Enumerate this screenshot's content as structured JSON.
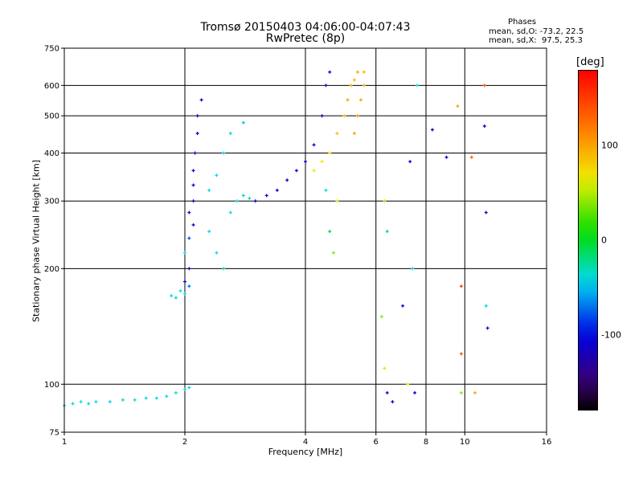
{
  "chart_data": {
    "type": "scatter",
    "title": "Tromsø 20150403 04:06:00-04:07:43",
    "subtitle": "RwPretec (8p)",
    "xlabel": "Frequency [MHz]",
    "ylabel": "Stationary phase Virtual Height [km]",
    "x_scale": "log",
    "y_scale": "log",
    "xlim": [
      1,
      16
    ],
    "ylim": [
      75,
      750
    ],
    "x_ticks": [
      1,
      2,
      4,
      6,
      8,
      10,
      16
    ],
    "y_ticks": [
      75,
      100,
      200,
      300,
      400,
      500,
      600,
      750
    ],
    "grid": true,
    "stats": {
      "heading": "Phases",
      "line_o": "mean, sd,O: -73.2, 22.5",
      "line_x": "mean, sd,X:  97.5, 25.3"
    },
    "colorbar": {
      "label": "[deg]",
      "range": [
        -180,
        180
      ],
      "ticks": [
        100,
        0,
        -100
      ]
    },
    "series": [
      {
        "points": [
          [
            1.0,
            88,
            -40
          ],
          [
            1.05,
            89,
            -35
          ],
          [
            1.1,
            90,
            -42
          ],
          [
            1.15,
            89,
            -38
          ],
          [
            1.2,
            90,
            -40
          ],
          [
            1.3,
            90,
            -45
          ],
          [
            1.4,
            91,
            -38
          ],
          [
            1.5,
            91,
            -40
          ],
          [
            1.6,
            92,
            -42
          ],
          [
            1.7,
            92,
            -36
          ],
          [
            1.8,
            93,
            -40
          ],
          [
            1.9,
            95,
            -38
          ],
          [
            2.0,
            97,
            -35
          ],
          [
            2.05,
            98,
            -40
          ],
          [
            1.85,
            170,
            -35
          ],
          [
            1.9,
            168,
            -30
          ],
          [
            1.95,
            175,
            -40
          ],
          [
            2.0,
            172,
            -45
          ],
          [
            2.05,
            180,
            -70
          ],
          [
            2.0,
            185,
            -110
          ],
          [
            2.05,
            200,
            -120
          ],
          [
            2.0,
            220,
            -40
          ],
          [
            2.05,
            240,
            -80
          ],
          [
            2.1,
            260,
            -120
          ],
          [
            2.05,
            280,
            -100
          ],
          [
            2.1,
            300,
            -120
          ],
          [
            2.1,
            330,
            -110
          ],
          [
            2.1,
            360,
            -120
          ],
          [
            2.12,
            400,
            -115
          ],
          [
            2.15,
            450,
            -110
          ],
          [
            2.15,
            500,
            -120
          ],
          [
            2.2,
            550,
            -115
          ],
          [
            2.3,
            320,
            -40
          ],
          [
            2.4,
            350,
            -40
          ],
          [
            2.5,
            400,
            -45
          ],
          [
            2.6,
            450,
            -40
          ],
          [
            2.8,
            480,
            -50
          ],
          [
            2.3,
            250,
            -40
          ],
          [
            2.4,
            220,
            -40
          ],
          [
            2.5,
            200,
            -35
          ],
          [
            2.6,
            280,
            -40
          ],
          [
            2.7,
            300,
            -35
          ],
          [
            2.8,
            310,
            -30
          ],
          [
            2.9,
            305,
            -40
          ],
          [
            3.0,
            300,
            -100
          ],
          [
            3.2,
            310,
            -110
          ],
          [
            3.4,
            320,
            -115
          ],
          [
            3.6,
            340,
            -110
          ],
          [
            3.8,
            360,
            -100
          ],
          [
            4.0,
            380,
            -120
          ],
          [
            4.2,
            420,
            -115
          ],
          [
            4.4,
            500,
            -110
          ],
          [
            4.5,
            600,
            -120
          ],
          [
            4.6,
            650,
            -100
          ],
          [
            4.2,
            360,
            60
          ],
          [
            4.4,
            380,
            70
          ],
          [
            4.6,
            400,
            80
          ],
          [
            4.8,
            450,
            90
          ],
          [
            5.0,
            500,
            85
          ],
          [
            5.1,
            550,
            100
          ],
          [
            5.2,
            600,
            95
          ],
          [
            5.3,
            620,
            90
          ],
          [
            5.4,
            650,
            100
          ],
          [
            5.3,
            450,
            100
          ],
          [
            5.4,
            500,
            110
          ],
          [
            5.5,
            550,
            100
          ],
          [
            5.6,
            600,
            95
          ],
          [
            5.6,
            650,
            90
          ],
          [
            4.5,
            320,
            -40
          ],
          [
            4.6,
            250,
            -10
          ],
          [
            4.7,
            220,
            40
          ],
          [
            4.8,
            300,
            60
          ],
          [
            6.2,
            150,
            40
          ],
          [
            6.3,
            110,
            70
          ],
          [
            6.4,
            95,
            -100
          ],
          [
            6.3,
            300,
            50
          ],
          [
            6.4,
            250,
            -20
          ],
          [
            6.6,
            90,
            -110
          ],
          [
            7.0,
            160,
            -100
          ],
          [
            7.2,
            100,
            60
          ],
          [
            7.3,
            380,
            -110
          ],
          [
            7.4,
            200,
            -40
          ],
          [
            7.5,
            95,
            -100
          ],
          [
            7.6,
            600,
            -40
          ],
          [
            8.3,
            460,
            -120
          ],
          [
            9.0,
            390,
            -110
          ],
          [
            9.6,
            530,
            100
          ],
          [
            9.8,
            180,
            150
          ],
          [
            9.8,
            120,
            140
          ],
          [
            9.8,
            95,
            40
          ],
          [
            10.4,
            390,
            130
          ],
          [
            11.2,
            600,
            140
          ],
          [
            11.2,
            470,
            -110
          ],
          [
            11.3,
            280,
            -120
          ],
          [
            11.3,
            160,
            -40
          ],
          [
            11.4,
            140,
            -120
          ],
          [
            10.6,
            95,
            100
          ]
        ]
      }
    ]
  }
}
